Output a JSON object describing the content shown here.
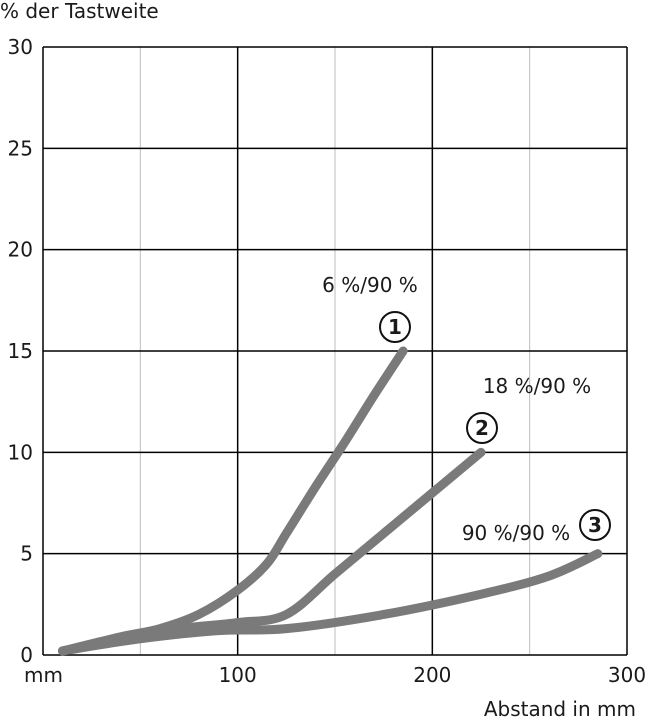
{
  "chart_data": {
    "type": "line",
    "ylabel": "% der Tastweite",
    "xlabel": "Abstand in mm",
    "x_unit_label": "mm",
    "xlim": [
      0,
      300
    ],
    "ylim": [
      0,
      30
    ],
    "x_ticks": [
      100,
      200,
      300
    ],
    "y_ticks": [
      0,
      5,
      10,
      15,
      20,
      25,
      30
    ],
    "grid": true,
    "colors": {
      "curve": "#7a7a7a",
      "grid_major": "#000000",
      "grid_minor": "#bdbdbd"
    },
    "series": [
      {
        "marker": "1",
        "label": "6 %/90 %",
        "points": [
          [
            10,
            0.2
          ],
          [
            40,
            0.9
          ],
          [
            60,
            1.3
          ],
          [
            80,
            2.0
          ],
          [
            100,
            3.2
          ],
          [
            115,
            4.5
          ],
          [
            125,
            6.0
          ],
          [
            140,
            8.3
          ],
          [
            155,
            10.5
          ],
          [
            170,
            12.8
          ],
          [
            185,
            15.0
          ]
        ]
      },
      {
        "marker": "2",
        "label": "18 %/90 %",
        "points": [
          [
            10,
            0.2
          ],
          [
            40,
            0.8
          ],
          [
            70,
            1.3
          ],
          [
            100,
            1.6
          ],
          [
            125,
            2.0
          ],
          [
            150,
            4.0
          ],
          [
            175,
            6.0
          ],
          [
            200,
            8.0
          ],
          [
            215,
            9.2
          ],
          [
            225,
            10.0
          ]
        ]
      },
      {
        "marker": "3",
        "label": "90 %/90 %",
        "points": [
          [
            10,
            0.2
          ],
          [
            50,
            0.8
          ],
          [
            90,
            1.2
          ],
          [
            125,
            1.3
          ],
          [
            175,
            2.0
          ],
          [
            225,
            3.0
          ],
          [
            260,
            3.9
          ],
          [
            285,
            5.0
          ]
        ]
      }
    ]
  }
}
